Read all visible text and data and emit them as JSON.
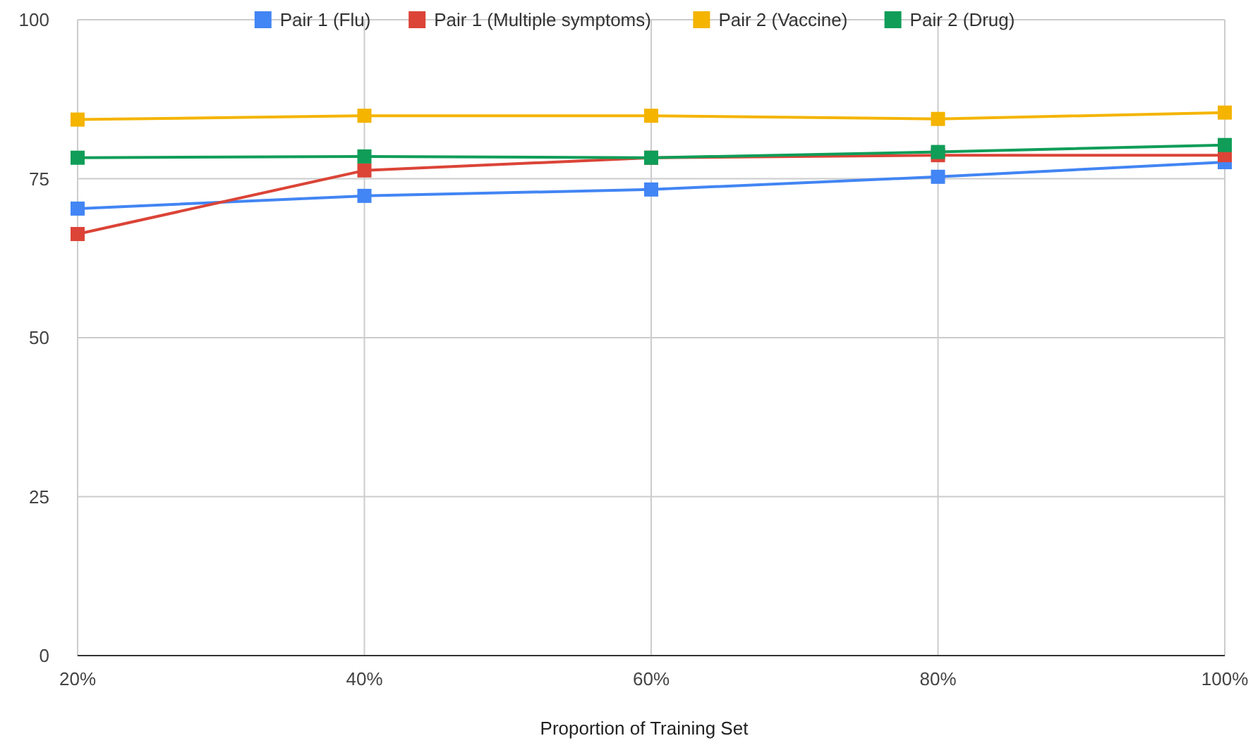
{
  "chart_data": {
    "type": "line",
    "xlabel": "Proportion of Training Set",
    "categories": [
      "20%",
      "40%",
      "60%",
      "80%",
      "100%"
    ],
    "series": [
      {
        "name": "Pair 1 (Flu)",
        "color": "#4285f4",
        "values": [
          70.3,
          72.3,
          73.3,
          75.3,
          77.6
        ]
      },
      {
        "name": "Pair 1 (Multiple symptoms)",
        "color": "#db4437",
        "values": [
          66.3,
          76.3,
          78.3,
          78.7,
          78.7
        ]
      },
      {
        "name": "Pair 2 (Vaccine)",
        "color": "#f4b400",
        "values": [
          84.3,
          84.9,
          84.9,
          84.4,
          85.4
        ]
      },
      {
        "name": "Pair 2 (Drug)",
        "color": "#0f9d58",
        "values": [
          78.3,
          78.5,
          78.3,
          79.2,
          80.3
        ]
      }
    ],
    "ylim": [
      0,
      100
    ],
    "yticks": [
      0,
      25,
      50,
      75,
      100
    ],
    "grid": true,
    "legend": "top",
    "marker": "square",
    "line_style": "solid"
  }
}
